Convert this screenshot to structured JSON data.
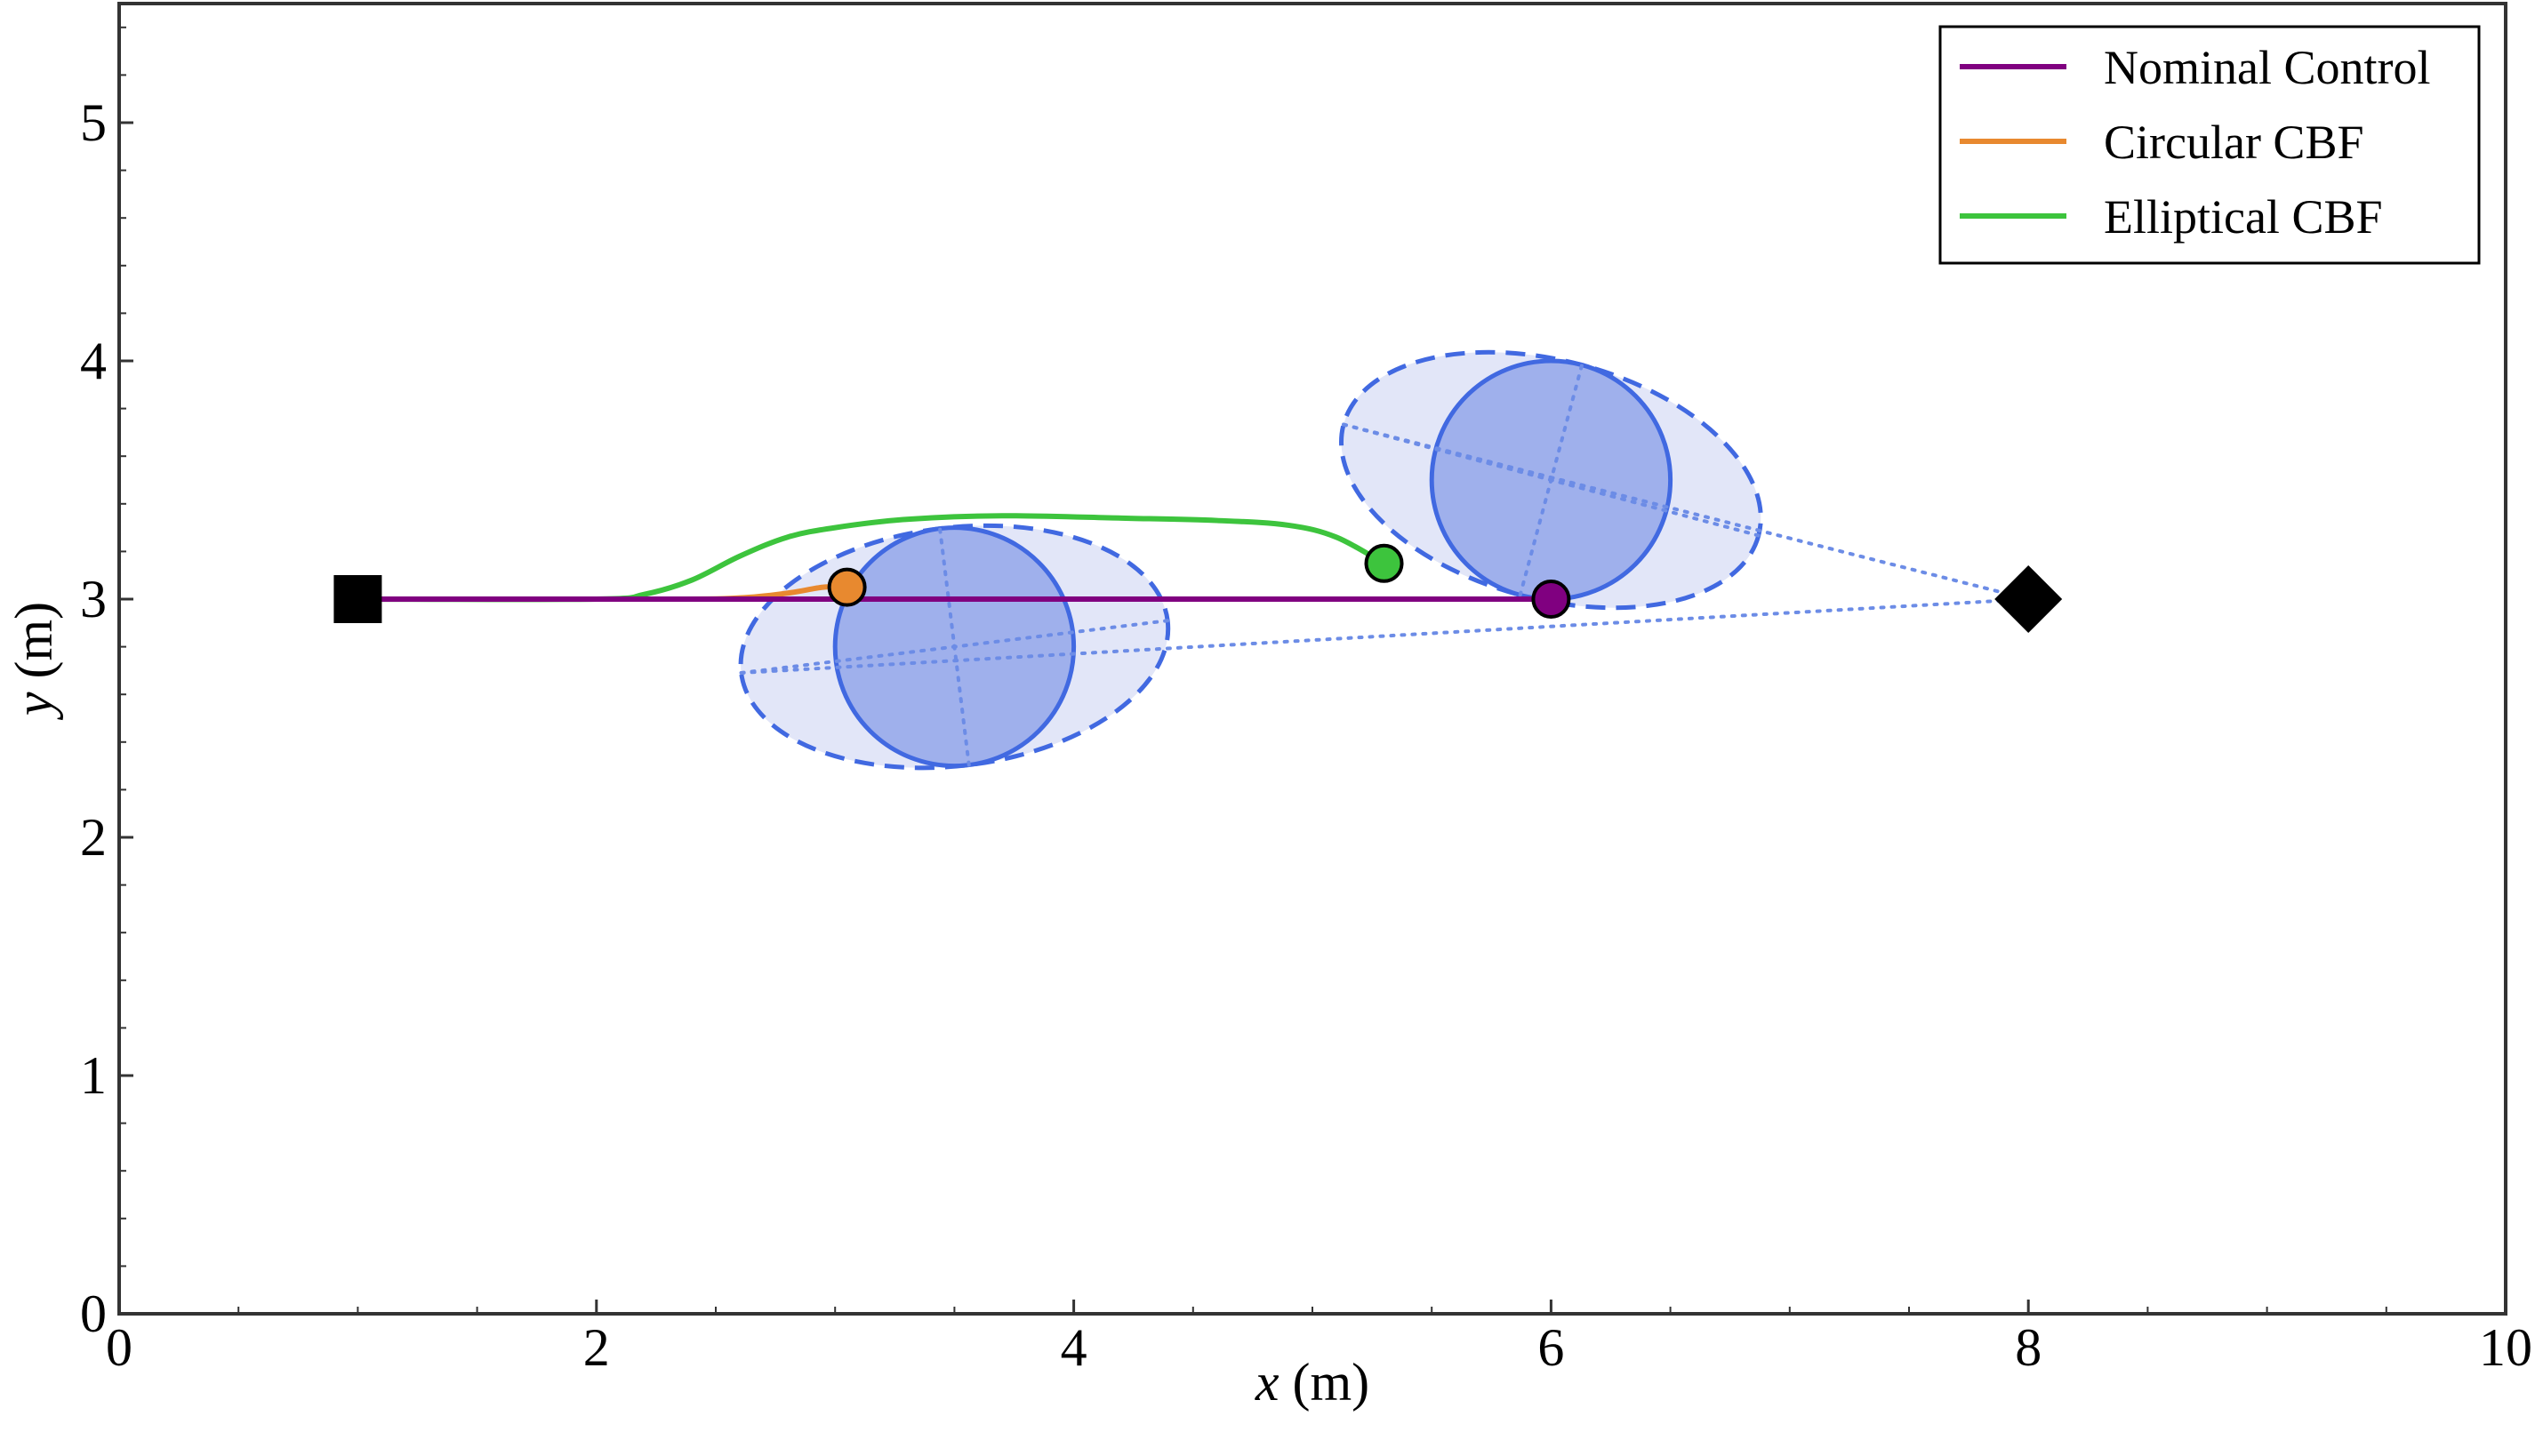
{
  "chart_data": {
    "type": "line",
    "title": "",
    "xlabel": {
      "var": "x",
      "unit": " (m)"
    },
    "ylabel": {
      "var": "y",
      "unit": " (m)"
    },
    "xlim": [
      0,
      10
    ],
    "ylim": [
      0,
      5.5
    ],
    "xticks": [
      0,
      2,
      4,
      6,
      8,
      10
    ],
    "yticks": [
      0,
      1,
      2,
      3,
      4,
      5
    ],
    "grid": false,
    "legend_position": "top-right",
    "start": {
      "x": 1,
      "y": 3,
      "marker": "square"
    },
    "goal": {
      "x": 8,
      "y": 3,
      "marker": "diamond"
    },
    "series": [
      {
        "name": "Nominal Control",
        "color": "#800080",
        "points": [
          [
            1,
            3
          ],
          [
            2,
            3
          ],
          [
            3,
            3
          ],
          [
            4,
            3
          ],
          [
            5,
            3
          ],
          [
            6,
            3
          ]
        ],
        "end_marker": {
          "x": 6,
          "y": 3
        }
      },
      {
        "name": "Circular CBF",
        "color": "#e8892f",
        "points": [
          [
            1,
            3
          ],
          [
            2.3,
            3
          ],
          [
            2.6,
            3.005
          ],
          [
            2.8,
            3.025
          ],
          [
            2.95,
            3.05
          ],
          [
            3.05,
            3.05
          ]
        ],
        "end_marker": {
          "x": 3.05,
          "y": 3.05
        }
      },
      {
        "name": "Elliptical CBF",
        "color": "#3dc43d",
        "points": [
          [
            1,
            3
          ],
          [
            2.0,
            3.0
          ],
          [
            2.2,
            3.02
          ],
          [
            2.4,
            3.08
          ],
          [
            2.6,
            3.18
          ],
          [
            2.8,
            3.26
          ],
          [
            3.0,
            3.3
          ],
          [
            3.3,
            3.335
          ],
          [
            3.7,
            3.35
          ],
          [
            4.2,
            3.34
          ],
          [
            4.6,
            3.33
          ],
          [
            4.9,
            3.31
          ],
          [
            5.1,
            3.26
          ],
          [
            5.3,
            3.15
          ]
        ],
        "end_marker": {
          "x": 5.3,
          "y": 3.15
        }
      }
    ],
    "obstacles": [
      {
        "center": [
          3.5,
          2.8
        ],
        "circle_radius": 0.5,
        "ellipse": {
          "rx": 0.9,
          "ry": 0.5,
          "angle_deg": 7
        }
      },
      {
        "center": [
          6.0,
          3.5
        ],
        "circle_radius": 0.5,
        "ellipse": {
          "rx": 0.9,
          "ry": 0.5,
          "angle_deg": -15
        }
      }
    ],
    "colors": {
      "obstacle_fill": "#9fb0ec",
      "obstacle_edge": "#4169e1",
      "ellipse_fill": "#e2e6f8",
      "ellipse_edge": "#4169e1",
      "guide": "#6c8ce6",
      "marker": "#000000"
    }
  }
}
